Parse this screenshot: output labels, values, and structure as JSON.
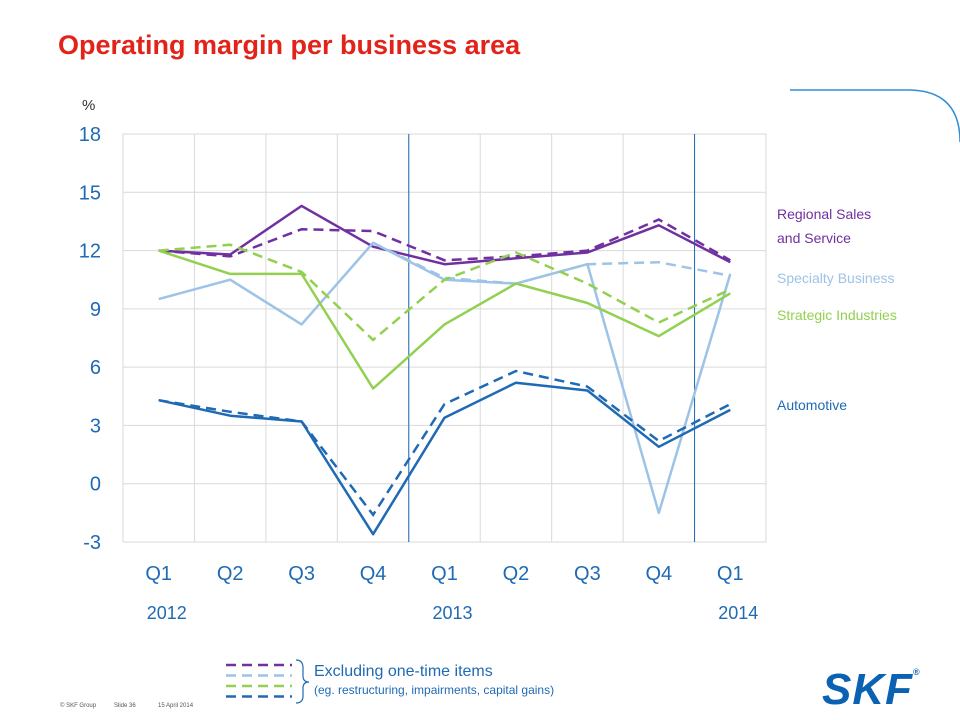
{
  "title": "Operating margin per business area",
  "chart_data": {
    "type": "line",
    "ylabel": "%",
    "ylim": [
      -3,
      18
    ],
    "yticks": [
      "18",
      "15",
      "12",
      "9",
      "6",
      "3",
      "0",
      "-3"
    ],
    "categories": [
      "Q1",
      "Q2",
      "Q3",
      "Q4",
      "Q1",
      "Q2",
      "Q3",
      "Q4",
      "Q1"
    ],
    "year_labels": [
      "2012",
      "2013",
      "2014"
    ],
    "grid": true,
    "legend_placement": "right",
    "series": [
      {
        "name": "Regional Sales and Service",
        "color": "#7030a0",
        "values": [
          12.0,
          11.8,
          14.3,
          12.2,
          11.3,
          11.6,
          11.9,
          13.3,
          11.4
        ],
        "excluding_one_time": [
          12.0,
          11.7,
          13.1,
          13.0,
          11.5,
          11.7,
          12.0,
          13.6,
          11.5
        ]
      },
      {
        "name": "Specialty Business",
        "color": "#9dc3e6",
        "values": [
          9.5,
          10.5,
          8.2,
          12.4,
          10.5,
          10.3,
          11.3,
          -1.5,
          10.8
        ],
        "excluding_one_time": [
          null,
          null,
          null,
          12.4,
          10.6,
          10.3,
          11.3,
          11.4,
          10.7
        ]
      },
      {
        "name": "Strategic Industries",
        "color": "#92d050",
        "values": [
          12.0,
          10.8,
          10.8,
          4.9,
          8.2,
          10.3,
          9.3,
          7.6,
          9.8
        ],
        "excluding_one_time": [
          12.0,
          12.3,
          10.9,
          7.4,
          10.5,
          11.9,
          10.3,
          8.3,
          10.0
        ]
      },
      {
        "name": "Automotive",
        "color": "#1f6ab5",
        "values": [
          4.3,
          3.5,
          3.2,
          -2.6,
          3.4,
          5.2,
          4.8,
          1.9,
          3.8
        ],
        "excluding_one_time": [
          4.3,
          3.7,
          3.2,
          -1.6,
          4.1,
          5.8,
          5.0,
          2.2,
          4.1
        ]
      }
    ],
    "legend_labels": [
      {
        "lines": [
          "Regional Sales",
          "and Service"
        ],
        "color": "#7030a0"
      },
      {
        "lines": [
          "Specialty Business"
        ],
        "color": "#9dc3e6"
      },
      {
        "lines": [
          "Strategic Industries"
        ],
        "color": "#92d050"
      },
      {
        "lines": [
          "Automotive"
        ],
        "color": "#1f6ab5"
      }
    ]
  },
  "excluding_note": {
    "main": "Excluding one-time items",
    "sub": "(eg. restructuring, impairments, capital gains)"
  },
  "footer": {
    "copyright": "© SKF Group",
    "slide": "Slide 36",
    "date": "15 April 2014"
  },
  "logo_text": "SKF",
  "logo_mark": "®"
}
